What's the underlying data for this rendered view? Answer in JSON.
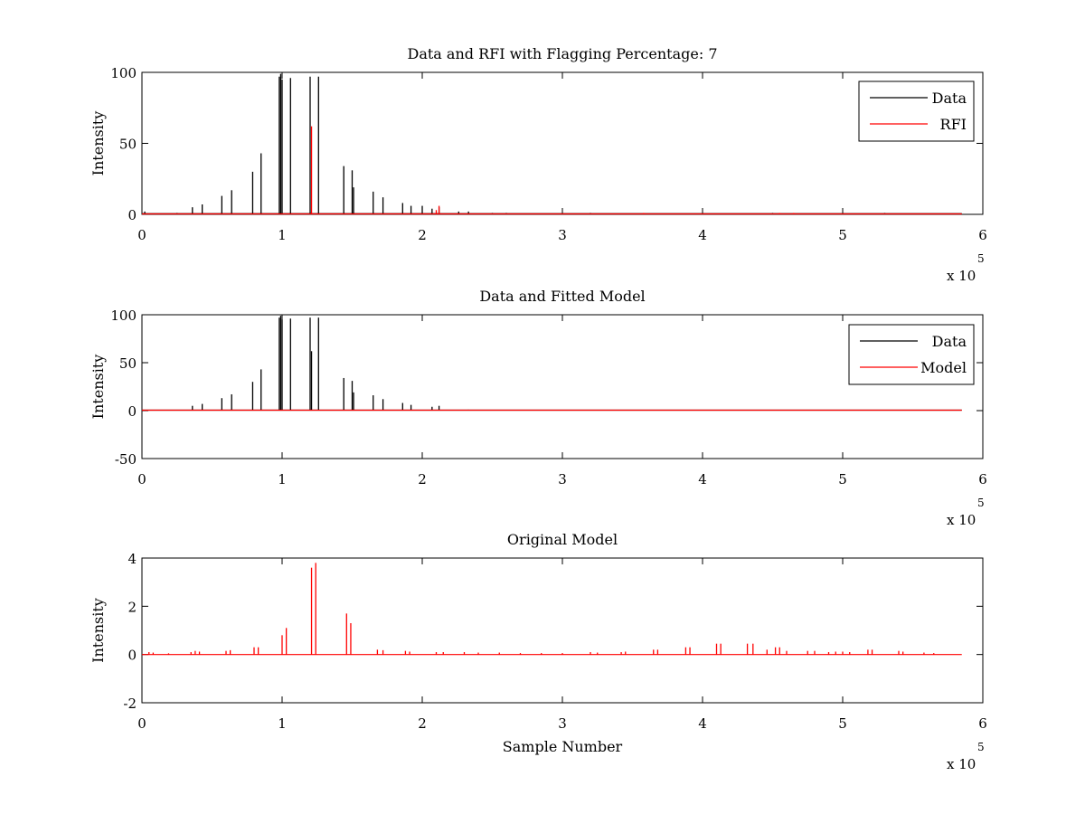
{
  "chart_data": [
    {
      "type": "line",
      "title": "Data and RFI with Flagging Percentage: 7",
      "xlabel": "",
      "ylabel": "Intensity",
      "xlim": [
        0,
        600000
      ],
      "ylim": [
        0,
        100
      ],
      "xticks": [
        0,
        1,
        2,
        3,
        4,
        5,
        6
      ],
      "yticks": [
        0,
        50,
        100
      ],
      "xtick_labels": [
        "0",
        "1",
        "2",
        "3",
        "4",
        "5",
        "6"
      ],
      "ytick_labels": [
        "0",
        "50",
        "100"
      ],
      "x_exponent": {
        "base": "x 10",
        "power": "5"
      },
      "legend": {
        "position": "top-right",
        "entries": [
          {
            "name": "Data",
            "color": "#000000"
          },
          {
            "name": "RFI",
            "color": "#ff0000"
          }
        ]
      },
      "series": [
        {
          "name": "Data",
          "color": "#000000",
          "baseline": 0.5,
          "spikes": [
            [
              2000,
              2
            ],
            [
              25000,
              1
            ],
            [
              36000,
              5
            ],
            [
              43000,
              7
            ],
            [
              57000,
              13
            ],
            [
              64000,
              17
            ],
            [
              79000,
              30
            ],
            [
              85000,
              43
            ],
            [
              98000,
              97
            ],
            [
              99000,
              99
            ],
            [
              100000,
              95
            ],
            [
              106000,
              96
            ],
            [
              120000,
              97
            ],
            [
              126000,
              97
            ],
            [
              144000,
              34
            ],
            [
              150000,
              31
            ],
            [
              151000,
              19
            ],
            [
              165000,
              16
            ],
            [
              172000,
              12
            ],
            [
              186000,
              8
            ],
            [
              192000,
              6
            ],
            [
              200000,
              6
            ],
            [
              207000,
              4
            ],
            [
              212000,
              5
            ],
            [
              226000,
              2
            ],
            [
              233000,
              2
            ],
            [
              250000,
              1
            ],
            [
              260000,
              1
            ],
            [
              320000,
              1
            ],
            [
              450000,
              1
            ],
            [
              530000,
              1
            ]
          ]
        },
        {
          "name": "RFI",
          "color": "#ff0000",
          "baseline": 0.3,
          "spikes": [
            [
              121000,
              62
            ],
            [
              212000,
              6
            ],
            [
              210000,
              3
            ],
            [
              358000,
              1
            ],
            [
              455000,
              1
            ],
            [
              465000,
              1
            ]
          ]
        }
      ]
    },
    {
      "type": "line",
      "title": "Data and Fitted Model",
      "xlabel": "",
      "ylabel": "Intensity",
      "xlim": [
        0,
        600000
      ],
      "ylim": [
        -50,
        100
      ],
      "xticks": [
        0,
        1,
        2,
        3,
        4,
        5,
        6
      ],
      "yticks": [
        -50,
        0,
        50,
        100
      ],
      "xtick_labels": [
        "0",
        "1",
        "2",
        "3",
        "4",
        "5",
        "6"
      ],
      "ytick_labels": [
        "-50",
        "0",
        "50",
        "100"
      ],
      "x_exponent": {
        "base": "x 10",
        "power": "5"
      },
      "legend": {
        "position": "top-right",
        "entries": [
          {
            "name": "Data",
            "color": "#000000"
          },
          {
            "name": "Model",
            "color": "#ff0000"
          }
        ]
      },
      "series": [
        {
          "name": "Data",
          "color": "#000000",
          "baseline": 0.5,
          "spikes": [
            [
              36000,
              5
            ],
            [
              43000,
              7
            ],
            [
              57000,
              13
            ],
            [
              64000,
              17
            ],
            [
              79000,
              30
            ],
            [
              85000,
              43
            ],
            [
              98000,
              97
            ],
            [
              99000,
              99
            ],
            [
              100000,
              95
            ],
            [
              106000,
              96
            ],
            [
              120000,
              97
            ],
            [
              121000,
              62
            ],
            [
              126000,
              97
            ],
            [
              144000,
              34
            ],
            [
              150000,
              31
            ],
            [
              151000,
              19
            ],
            [
              165000,
              16
            ],
            [
              172000,
              12
            ],
            [
              186000,
              8
            ],
            [
              192000,
              6
            ],
            [
              207000,
              4
            ],
            [
              212000,
              5
            ],
            [
              233000,
              1
            ]
          ]
        },
        {
          "name": "Model",
          "color": "#ff0000",
          "baseline": 0.5,
          "spikes": []
        }
      ]
    },
    {
      "type": "line",
      "title": "Original Model",
      "xlabel": "Sample Number",
      "ylabel": "Intensity",
      "xlim": [
        0,
        600000
      ],
      "ylim": [
        -2,
        4
      ],
      "xticks": [
        0,
        1,
        2,
        3,
        4,
        5,
        6
      ],
      "yticks": [
        -2,
        0,
        2,
        4
      ],
      "xtick_labels": [
        "0",
        "1",
        "2",
        "3",
        "4",
        "5",
        "6"
      ],
      "ytick_labels": [
        "-2",
        "0",
        "2",
        "4"
      ],
      "x_exponent": {
        "base": "x 10",
        "power": "5"
      },
      "series": [
        {
          "name": "Model",
          "color": "#ff0000",
          "baseline": 0,
          "spikes": [
            [
              5000,
              0.1
            ],
            [
              8000,
              0.08
            ],
            [
              19000,
              0.05
            ],
            [
              35000,
              0.1
            ],
            [
              38000,
              0.15
            ],
            [
              41000,
              0.12
            ],
            [
              60000,
              0.15
            ],
            [
              63000,
              0.18
            ],
            [
              80000,
              0.3
            ],
            [
              83000,
              0.3
            ],
            [
              100000,
              0.8
            ],
            [
              103000,
              1.1
            ],
            [
              121000,
              3.6
            ],
            [
              124000,
              3.8
            ],
            [
              146000,
              1.7
            ],
            [
              149000,
              1.3
            ],
            [
              168000,
              0.2
            ],
            [
              172000,
              0.18
            ],
            [
              188000,
              0.15
            ],
            [
              191000,
              0.12
            ],
            [
              210000,
              0.1
            ],
            [
              215000,
              0.1
            ],
            [
              230000,
              0.1
            ],
            [
              240000,
              0.08
            ],
            [
              255000,
              0.08
            ],
            [
              270000,
              0.06
            ],
            [
              285000,
              0.06
            ],
            [
              300000,
              0.06
            ],
            [
              320000,
              0.1
            ],
            [
              325000,
              0.08
            ],
            [
              342000,
              0.1
            ],
            [
              345000,
              0.12
            ],
            [
              365000,
              0.2
            ],
            [
              368000,
              0.2
            ],
            [
              388000,
              0.3
            ],
            [
              391000,
              0.3
            ],
            [
              410000,
              0.45
            ],
            [
              413000,
              0.45
            ],
            [
              432000,
              0.45
            ],
            [
              436000,
              0.45
            ],
            [
              446000,
              0.2
            ],
            [
              452000,
              0.3
            ],
            [
              455000,
              0.3
            ],
            [
              460000,
              0.15
            ],
            [
              475000,
              0.15
            ],
            [
              480000,
              0.15
            ],
            [
              490000,
              0.1
            ],
            [
              495000,
              0.12
            ],
            [
              500000,
              0.12
            ],
            [
              505000,
              0.1
            ],
            [
              518000,
              0.2
            ],
            [
              521000,
              0.2
            ],
            [
              540000,
              0.15
            ],
            [
              543000,
              0.12
            ],
            [
              558000,
              0.08
            ],
            [
              565000,
              0.06
            ]
          ]
        }
      ]
    }
  ]
}
